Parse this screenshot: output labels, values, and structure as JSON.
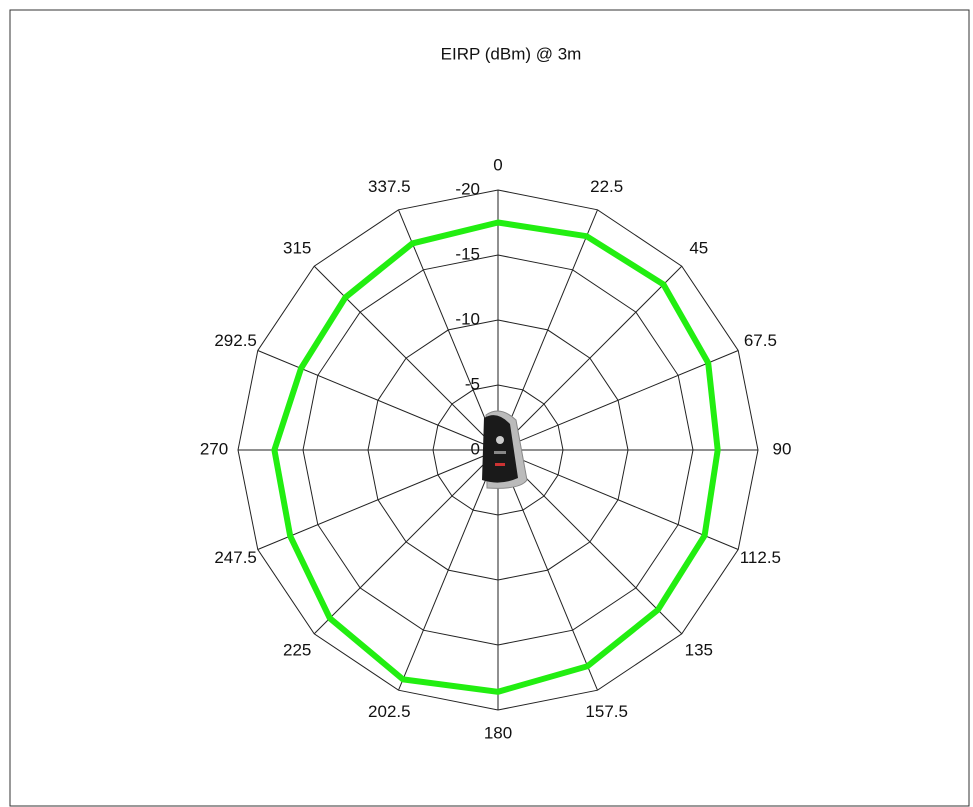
{
  "chart_data": {
    "type": "radar",
    "title": "EIRP (dBm) @ 3m",
    "categories": [
      "0",
      "22.5",
      "45",
      "67.5",
      "90",
      "112.5",
      "135",
      "157.5",
      "180",
      "202.5",
      "225",
      "247.5",
      "270",
      "292.5",
      "315",
      "337.5"
    ],
    "series": [
      {
        "color": "#22ee11",
        "values": [
          -17.5,
          -17.8,
          -18.0,
          -17.5,
          -16.9,
          -17.2,
          -17.4,
          -18.0,
          -18.6,
          -19.1,
          -18.3,
          -17.3,
          -17.2,
          -16.4,
          -16.6,
          -17.2
        ]
      }
    ],
    "ylim": [
      0,
      -20
    ],
    "yticks": [
      0,
      -5,
      -10,
      -15,
      -20
    ],
    "grid": true
  }
}
